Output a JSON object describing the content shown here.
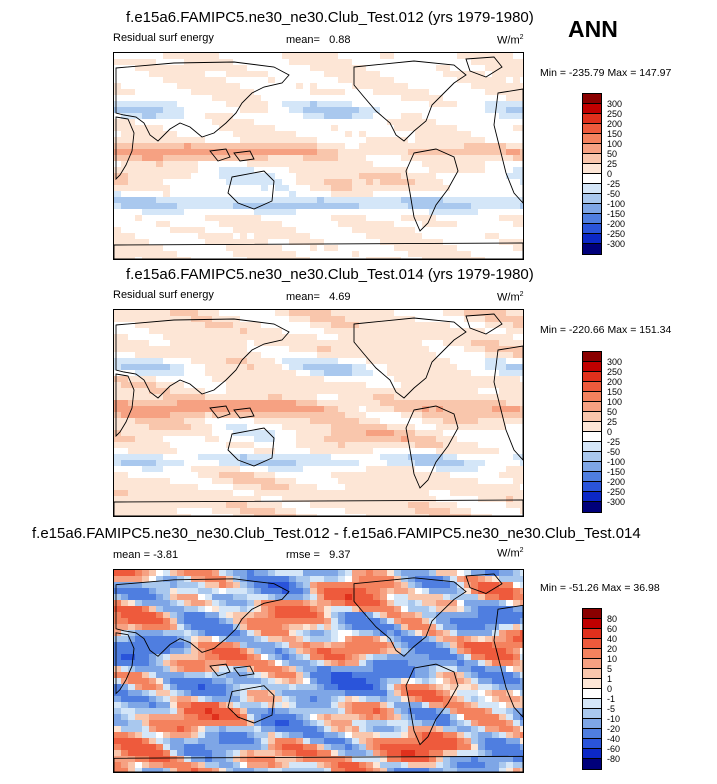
{
  "season": "ANN",
  "panels": [
    {
      "title": "f.e15a6.FAMIPC5.ne30_ne30.Club_Test.012 (yrs 1979-1980)",
      "variable": "Residual surf energy",
      "mean_label": "mean=",
      "mean_value": "0.88",
      "rmse_label": "",
      "rmse_value": "",
      "units": "W/m",
      "units_exp": "2",
      "min_label": "Min =",
      "min_value": "-235.79",
      "max_label": "Max =",
      "max_value": "147.97",
      "levels": [
        "300",
        "250",
        "200",
        "150",
        "100",
        "50",
        "25",
        "0",
        "-25",
        "-50",
        "-100",
        "-150",
        "-200",
        "-250",
        "-300"
      ],
      "colors": [
        "#8a0000",
        "#c00000",
        "#e0301c",
        "#ee5a3c",
        "#f4825e",
        "#f6a182",
        "#f9c6ac",
        "#fde6d6",
        "#ffffff",
        "#d4e6f8",
        "#a9c8ee",
        "#7ea6e6",
        "#4f7ee0",
        "#2a54da",
        "#0c28c6",
        "#00007a"
      ]
    },
    {
      "title": "f.e15a6.FAMIPC5.ne30_ne30.Club_Test.014 (yrs 1979-1980)",
      "variable": "Residual surf energy",
      "mean_label": "mean=",
      "mean_value": "4.69",
      "rmse_label": "",
      "rmse_value": "",
      "units": "W/m",
      "units_exp": "2",
      "min_label": "Min =",
      "min_value": "-220.66",
      "max_label": "Max =",
      "max_value": "151.34",
      "levels": [
        "300",
        "250",
        "200",
        "150",
        "100",
        "50",
        "25",
        "0",
        "-25",
        "-50",
        "-100",
        "-150",
        "-200",
        "-250",
        "-300"
      ],
      "colors": [
        "#8a0000",
        "#c00000",
        "#e0301c",
        "#ee5a3c",
        "#f4825e",
        "#f6a182",
        "#f9c6ac",
        "#fde6d6",
        "#ffffff",
        "#d4e6f8",
        "#a9c8ee",
        "#7ea6e6",
        "#4f7ee0",
        "#2a54da",
        "#0c28c6",
        "#00007a"
      ]
    },
    {
      "title": "f.e15a6.FAMIPC5.ne30_ne30.Club_Test.012 - f.e15a6.FAMIPC5.ne30_ne30.Club_Test.014",
      "variable": "",
      "mean_label": "mean =",
      "mean_value": "-3.81",
      "rmse_label": "rmse =",
      "rmse_value": "9.37",
      "units": "W/m",
      "units_exp": "2",
      "min_label": "Min =",
      "min_value": "-51.26",
      "max_label": "Max =",
      "max_value": "36.98",
      "levels": [
        "80",
        "60",
        "40",
        "20",
        "10",
        "5",
        "1",
        "0",
        "-1",
        "-5",
        "-10",
        "-20",
        "-40",
        "-60",
        "-80"
      ],
      "colors": [
        "#8a0000",
        "#c00000",
        "#e0301c",
        "#ee5a3c",
        "#f4825e",
        "#f6a182",
        "#f9c6ac",
        "#fde6d6",
        "#ffffff",
        "#d4e6f8",
        "#a9c8ee",
        "#7ea6e6",
        "#4f7ee0",
        "#2a54da",
        "#0c28c6",
        "#00007a"
      ]
    }
  ],
  "chart_data": [
    {
      "type": "heatmap",
      "title": "f.e15a6.FAMIPC5.ne30_ne30.Club_Test.012 (yrs 1979-1980)",
      "variable": "Residual surf energy",
      "units": "W/m2",
      "season": "ANN",
      "mean": 0.88,
      "min": -235.79,
      "max": 147.97,
      "contour_levels": [
        -300,
        -250,
        -200,
        -150,
        -100,
        -50,
        -25,
        0,
        25,
        50,
        100,
        150,
        200,
        250,
        300
      ],
      "projection": "cylindrical equidistant, centered on Pacific"
    },
    {
      "type": "heatmap",
      "title": "f.e15a6.FAMIPC5.ne30_ne30.Club_Test.014 (yrs 1979-1980)",
      "variable": "Residual surf energy",
      "units": "W/m2",
      "season": "ANN",
      "mean": 4.69,
      "min": -220.66,
      "max": 151.34,
      "contour_levels": [
        -300,
        -250,
        -200,
        -150,
        -100,
        -50,
        -25,
        0,
        25,
        50,
        100,
        150,
        200,
        250,
        300
      ],
      "projection": "cylindrical equidistant, centered on Pacific"
    },
    {
      "type": "heatmap",
      "title": "f.e15a6.FAMIPC5.ne30_ne30.Club_Test.012 - f.e15a6.FAMIPC5.ne30_ne30.Club_Test.014",
      "units": "W/m2",
      "season": "ANN",
      "mean": -3.81,
      "rmse": 9.37,
      "min": -51.26,
      "max": 36.98,
      "contour_levels": [
        -80,
        -60,
        -40,
        -20,
        -10,
        -5,
        -1,
        0,
        1,
        5,
        10,
        20,
        40,
        60,
        80
      ],
      "projection": "cylindrical equidistant, centered on Pacific"
    }
  ]
}
